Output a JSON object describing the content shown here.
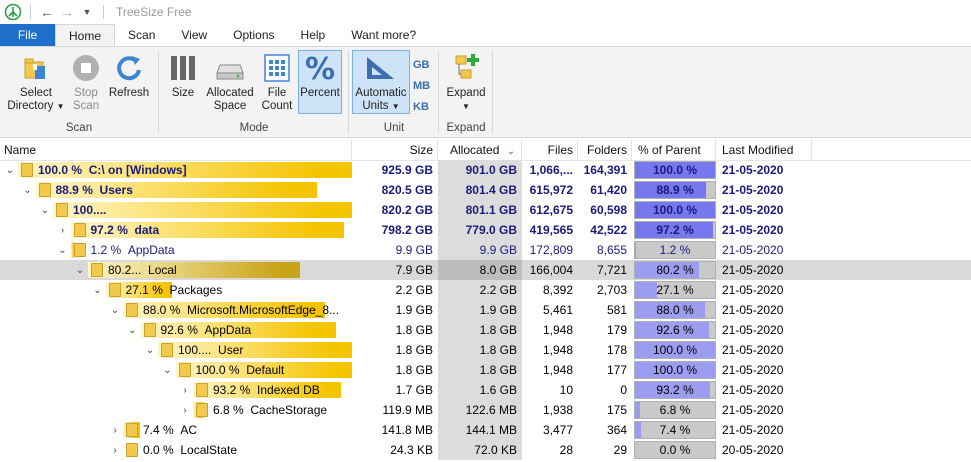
{
  "app": {
    "title": "TreeSize Free"
  },
  "menu": {
    "tabs": [
      "File",
      "Home",
      "Scan",
      "View",
      "Options",
      "Help",
      "Want more?"
    ]
  },
  "ribbon": {
    "scan": {
      "select_line1": "Select",
      "select_line2": "Directory",
      "stop_line1": "Stop",
      "stop_line2": "Scan",
      "refresh": "Refresh",
      "label": "Scan"
    },
    "mode": {
      "size": "Size",
      "alloc_line1": "Allocated",
      "alloc_line2": "Space",
      "count_line1": "File",
      "count_line2": "Count",
      "percent": "Percent",
      "label": "Mode"
    },
    "unit": {
      "auto_line1": "Automatic",
      "auto_line2": "Units",
      "gb": "GB",
      "mb": "MB",
      "kb": "KB",
      "label": "Unit"
    },
    "expand": {
      "expand": "Expand",
      "label": "Expand"
    }
  },
  "columns": {
    "name": "Name",
    "size": "Size",
    "allocated": "Allocated",
    "files": "Files",
    "folders": "Folders",
    "percent": "% of Parent ...",
    "modified": "Last Modified"
  },
  "colors": {
    "bar_gold": "#f5c400",
    "percent_fill": "#7777ee",
    "percent_fill_light": "#9c9cf0"
  },
  "rows": [
    {
      "level": 0,
      "expander": "open",
      "pct": "100.0 %",
      "label": "C:\\  on  [Windows]",
      "bar": 1.0,
      "size": "925.9 GB",
      "allocated": "901.0 GB",
      "files": "1,066,...",
      "folders": "164,391",
      "ppct": "100.0 %",
      "pval": 1.0,
      "modified": "21-05-2020",
      "bold": true
    },
    {
      "level": 1,
      "expander": "open",
      "pct": "88.9 %",
      "label": "Users",
      "bar": 0.889,
      "size": "820.5 GB",
      "allocated": "801.4 GB",
      "files": "615,972",
      "folders": "61,420",
      "ppct": "88.9 %",
      "pval": 0.889,
      "modified": "21-05-2020",
      "bold": true
    },
    {
      "level": 2,
      "expander": "open",
      "pct": "100....",
      "label": "",
      "bar": 1.0,
      "size": "820.2 GB",
      "allocated": "801.1 GB",
      "files": "612,675",
      "folders": "60,598",
      "ppct": "100.0 %",
      "pval": 1.0,
      "modified": "21-05-2020",
      "bold": true
    },
    {
      "level": 3,
      "expander": "closed",
      "pct": "97.2 %",
      "label": "data",
      "bar": 0.972,
      "size": "798.2 GB",
      "allocated": "779.0 GB",
      "files": "419,565",
      "folders": "42,522",
      "ppct": "97.2 %",
      "pval": 0.972,
      "modified": "21-05-2020",
      "bold": true
    },
    {
      "level": 3,
      "expander": "open",
      "pct": "1.2 %",
      "label": "AppData",
      "bar": 0.012,
      "size": "9.9 GB",
      "allocated": "9.9 GB",
      "files": "172,809",
      "folders": "8,655",
      "ppct": "1.2 %",
      "pval": 0.012,
      "modified": "21-05-2020",
      "bold": false,
      "navy": true
    },
    {
      "level": 4,
      "expander": "open",
      "pct": "80.2...",
      "label": "Local",
      "bar": 0.802,
      "size": "7.9 GB",
      "allocated": "8.0 GB",
      "files": "166,004",
      "folders": "7,721",
      "ppct": "80.2 %",
      "pval": 0.802,
      "modified": "21-05-2020",
      "bold": false,
      "selected": true
    },
    {
      "level": 5,
      "expander": "open",
      "pct": "27.1 %",
      "label": "Packages",
      "bar": 0.271,
      "size": "2.2 GB",
      "allocated": "2.2 GB",
      "files": "8,392",
      "folders": "2,703",
      "ppct": "27.1 %",
      "pval": 0.271,
      "modified": "21-05-2020",
      "bold": false
    },
    {
      "level": 6,
      "expander": "open",
      "pct": "88.0 %",
      "label": "Microsoft.MicrosoftEdge_8...",
      "bar": 0.88,
      "size": "1.9 GB",
      "allocated": "1.9 GB",
      "files": "5,461",
      "folders": "581",
      "ppct": "88.0 %",
      "pval": 0.88,
      "modified": "21-05-2020",
      "bold": false
    },
    {
      "level": 7,
      "expander": "open",
      "pct": "92.6 %",
      "label": "AppData",
      "bar": 0.926,
      "size": "1.8 GB",
      "allocated": "1.8 GB",
      "files": "1,948",
      "folders": "179",
      "ppct": "92.6 %",
      "pval": 0.926,
      "modified": "21-05-2020",
      "bold": false
    },
    {
      "level": 8,
      "expander": "open",
      "pct": "100....",
      "label": "User",
      "bar": 1.0,
      "size": "1.8 GB",
      "allocated": "1.8 GB",
      "files": "1,948",
      "folders": "178",
      "ppct": "100.0 %",
      "pval": 1.0,
      "modified": "21-05-2020",
      "bold": false
    },
    {
      "level": 9,
      "expander": "open",
      "pct": "100.0 %",
      "label": "Default",
      "bar": 1.0,
      "size": "1.8 GB",
      "allocated": "1.8 GB",
      "files": "1,948",
      "folders": "177",
      "ppct": "100.0 %",
      "pval": 1.0,
      "modified": "21-05-2020",
      "bold": false
    },
    {
      "level": 10,
      "expander": "closed",
      "pct": "93.2 %",
      "label": "Indexed DB",
      "bar": 0.932,
      "size": "1.7 GB",
      "allocated": "1.6 GB",
      "files": "10",
      "folders": "0",
      "ppct": "93.2 %",
      "pval": 0.932,
      "modified": "21-05-2020",
      "bold": false
    },
    {
      "level": 10,
      "expander": "closed",
      "pct": "6.8 %",
      "label": "CacheStorage",
      "bar": 0.068,
      "size": "119.9 MB",
      "allocated": "122.6 MB",
      "files": "1,938",
      "folders": "175",
      "ppct": "6.8 %",
      "pval": 0.068,
      "modified": "21-05-2020",
      "bold": false
    },
    {
      "level": 6,
      "expander": "closed",
      "pct": "7.4 %",
      "label": "AC",
      "bar": 0.074,
      "size": "141.8 MB",
      "allocated": "144.1 MB",
      "files": "3,477",
      "folders": "364",
      "ppct": "7.4 %",
      "pval": 0.074,
      "modified": "21-05-2020",
      "bold": false
    },
    {
      "level": 6,
      "expander": "closed",
      "pct": "0.0 %",
      "label": "LocalState",
      "bar": 0.0,
      "size": "24.3 KB",
      "allocated": "72.0 KB",
      "files": "28",
      "folders": "29",
      "ppct": "0.0 %",
      "pval": 0.0,
      "modified": "20-05-2020",
      "bold": false
    }
  ]
}
